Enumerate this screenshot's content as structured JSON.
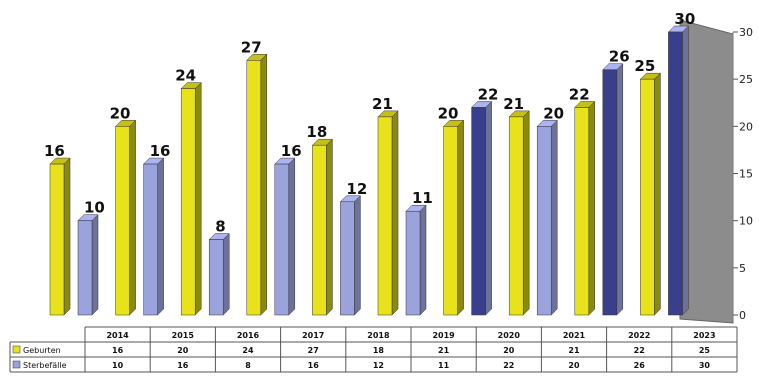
{
  "chart_data": {
    "type": "bar",
    "categories": [
      "2014",
      "2015",
      "2016",
      "2017",
      "2018",
      "2019",
      "2020",
      "2021",
      "2022",
      "2023"
    ],
    "series": [
      {
        "name": "Geburten",
        "values": [
          16,
          20,
          24,
          27,
          18,
          21,
          20,
          21,
          22,
          25
        ],
        "color": "#e8e21a",
        "side_color": "#8a8a10"
      },
      {
        "name": "Sterbefälle",
        "values": [
          10,
          16,
          8,
          16,
          12,
          11,
          22,
          20,
          26,
          30
        ],
        "color": "#9ba3dc",
        "highlight_color": "#3a3f8c"
      }
    ],
    "ylim": [
      0,
      30
    ],
    "yticks": [
      "0",
      "5",
      "10",
      "15",
      "20",
      "25",
      "30"
    ],
    "axis_position": "right",
    "data_table": true,
    "wall_color": "#8c8c8c",
    "three_d": true
  }
}
